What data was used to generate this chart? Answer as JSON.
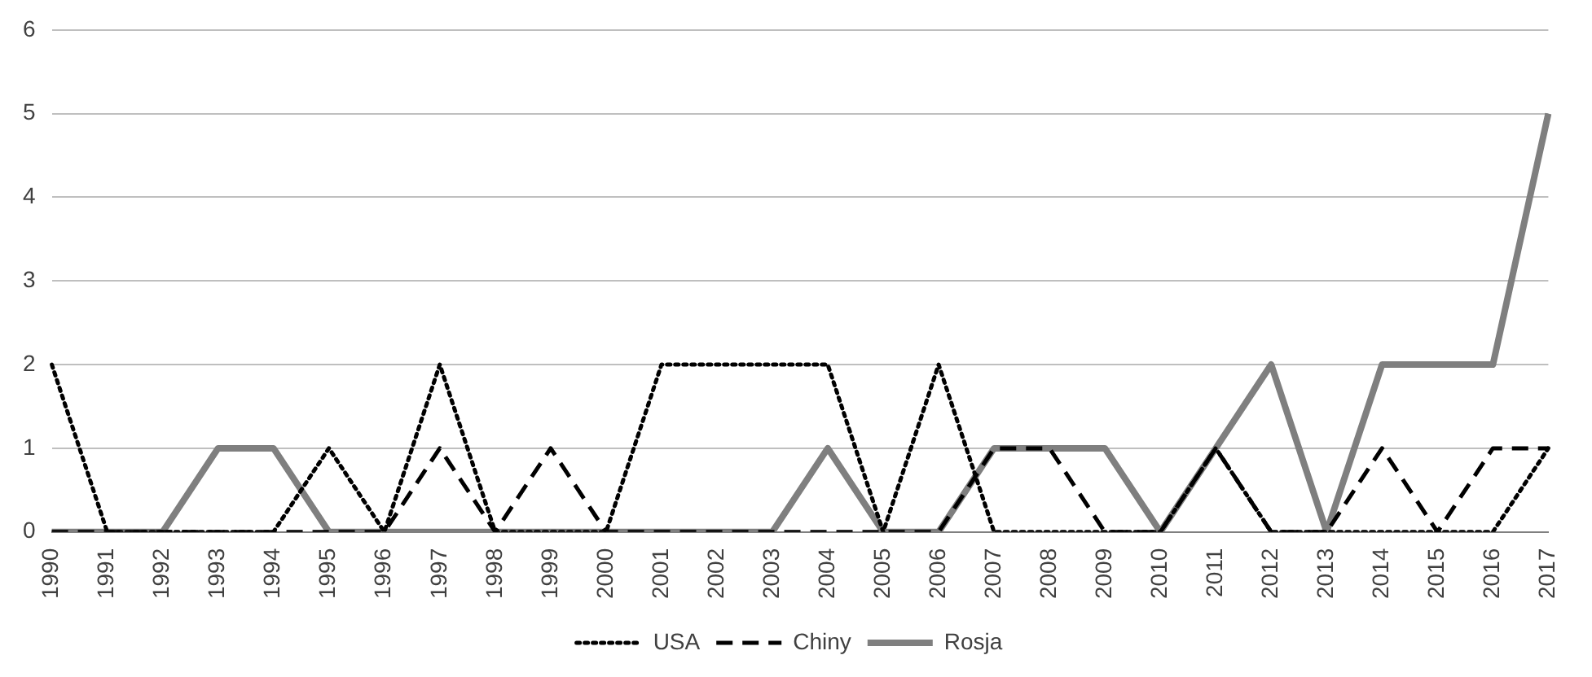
{
  "chart_data": {
    "type": "line",
    "categories": [
      "1990",
      "1991",
      "1992",
      "1993",
      "1994",
      "1995",
      "1996",
      "1997",
      "1998",
      "1999",
      "2000",
      "2001",
      "2002",
      "2003",
      "2004",
      "2005",
      "2006",
      "2007",
      "2008",
      "2009",
      "2010",
      "2011",
      "2012",
      "2013",
      "2014",
      "2015",
      "2016",
      "2017"
    ],
    "series": [
      {
        "name": "USA",
        "color": "#000000",
        "line_style": "dotted",
        "values": [
          2,
          0,
          0,
          0,
          0,
          1,
          0,
          2,
          0,
          0,
          0,
          2,
          2,
          2,
          2,
          0,
          2,
          0,
          0,
          0,
          0,
          1,
          0,
          0,
          0,
          0,
          0,
          1
        ]
      },
      {
        "name": "Chiny",
        "color": "#000000",
        "line_style": "dashed",
        "values": [
          0,
          0,
          0,
          0,
          0,
          0,
          0,
          1,
          0,
          1,
          0,
          0,
          0,
          0,
          0,
          0,
          0,
          1,
          1,
          0,
          0,
          1,
          0,
          0,
          1,
          0,
          1,
          1
        ]
      },
      {
        "name": "Rosja",
        "color": "#7f7f7f",
        "line_style": "solid",
        "values": [
          0,
          0,
          0,
          1,
          1,
          0,
          0,
          0,
          0,
          0,
          0,
          0,
          0,
          0,
          1,
          0,
          0,
          1,
          1,
          1,
          0,
          1,
          2,
          0,
          2,
          2,
          2,
          5
        ]
      }
    ],
    "ylim": [
      0,
      6
    ],
    "yticks": [
      0,
      1,
      2,
      3,
      4,
      5,
      6
    ],
    "grid": "y",
    "legend": "bottom",
    "marker": "none"
  }
}
